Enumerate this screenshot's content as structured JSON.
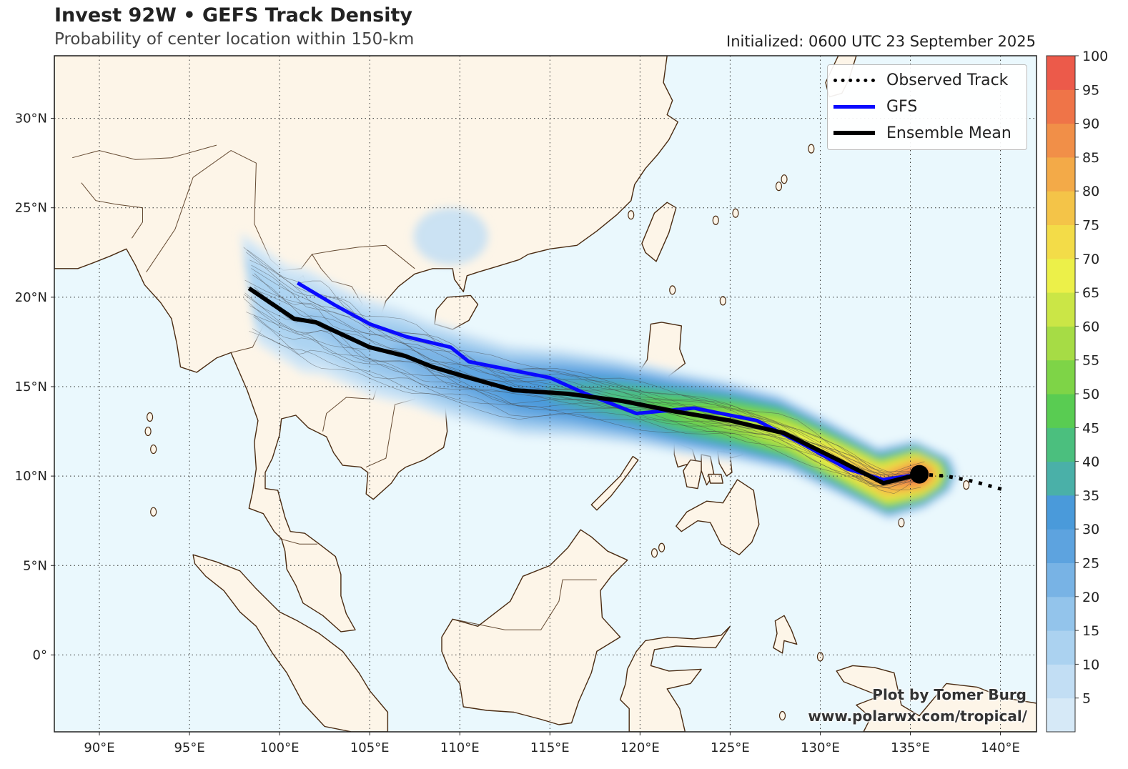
{
  "header": {
    "title": "Invest 92W • GEFS Track Density",
    "subtitle": "Probability of center location within 150-km",
    "initialized": "Initialized: 0600 UTC 23 September 2025"
  },
  "legend": {
    "items": [
      {
        "label": "Observed Track",
        "color": "#000000",
        "style": "dotted"
      },
      {
        "label": "GFS",
        "color": "#0a0aff",
        "style": "solid"
      },
      {
        "label": "Ensemble Mean",
        "color": "#000000",
        "style": "solid"
      }
    ]
  },
  "credit": {
    "line1": "Plot by Tomer Burg",
    "line2": "www.polarwx.com/tropical/"
  },
  "axes": {
    "lon_ticks": [
      "90°E",
      "95°E",
      "100°E",
      "105°E",
      "110°E",
      "115°E",
      "120°E",
      "125°E",
      "130°E",
      "135°E",
      "140°E"
    ],
    "lat_ticks": [
      "30°N",
      "25°N",
      "20°N",
      "15°N",
      "10°N",
      "5°N",
      "0°"
    ],
    "lon_range": [
      87.5,
      142
    ],
    "lat_range": [
      -4.3,
      33.5
    ]
  },
  "colorbar": {
    "ticks": [
      "5",
      "10",
      "15",
      "20",
      "25",
      "30",
      "35",
      "40",
      "45",
      "50",
      "55",
      "60",
      "65",
      "70",
      "75",
      "80",
      "85",
      "90",
      "95",
      "100"
    ],
    "colors": [
      "#d6e9f7",
      "#c2def4",
      "#abd2f0",
      "#93c4eb",
      "#78b3e5",
      "#5da3df",
      "#4a9ada",
      "#4ab0a8",
      "#4bbf7e",
      "#59cc52",
      "#7ed447",
      "#a6dc45",
      "#cbe646",
      "#ecf049",
      "#f3dc48",
      "#f4c448",
      "#f3aa48",
      "#f18f48",
      "#ef7448",
      "#ec5a4a"
    ]
  },
  "map_data": {
    "ocean_color": "#eaf8fd",
    "land_color": "#fdf5e8",
    "coast_color": "#4a2b12",
    "gfs_track": [
      [
        101,
        20.8
      ],
      [
        103,
        19.6
      ],
      [
        105,
        18.5
      ],
      [
        107,
        17.8
      ],
      [
        109.5,
        17.2
      ],
      [
        110.5,
        16.4
      ],
      [
        112.5,
        16.0
      ],
      [
        115,
        15.5
      ],
      [
        117,
        14.6
      ],
      [
        119.8,
        13.5
      ],
      [
        123,
        13.8
      ],
      [
        126.5,
        13.1
      ],
      [
        129,
        11.8
      ],
      [
        131.5,
        10.4
      ],
      [
        133.5,
        9.8
      ],
      [
        135.5,
        10.1
      ]
    ],
    "ensemble_mean": [
      [
        98.3,
        20.5
      ],
      [
        100.8,
        18.8
      ],
      [
        102,
        18.6
      ],
      [
        103.5,
        17.9
      ],
      [
        105,
        17.2
      ],
      [
        107,
        16.7
      ],
      [
        108.5,
        16.1
      ],
      [
        110.5,
        15.5
      ],
      [
        113,
        14.8
      ],
      [
        116,
        14.6
      ],
      [
        119,
        14.2
      ],
      [
        122,
        13.6
      ],
      [
        125,
        13.1
      ],
      [
        128,
        12.4
      ],
      [
        131,
        10.9
      ],
      [
        133.5,
        9.6
      ],
      [
        135.5,
        10.1
      ]
    ],
    "observed_track": [
      [
        135.5,
        10.1
      ],
      [
        137,
        10.0
      ],
      [
        138.5,
        9.7
      ],
      [
        140.3,
        9.2
      ]
    ],
    "storm_center": [
      135.5,
      10.1
    ]
  }
}
